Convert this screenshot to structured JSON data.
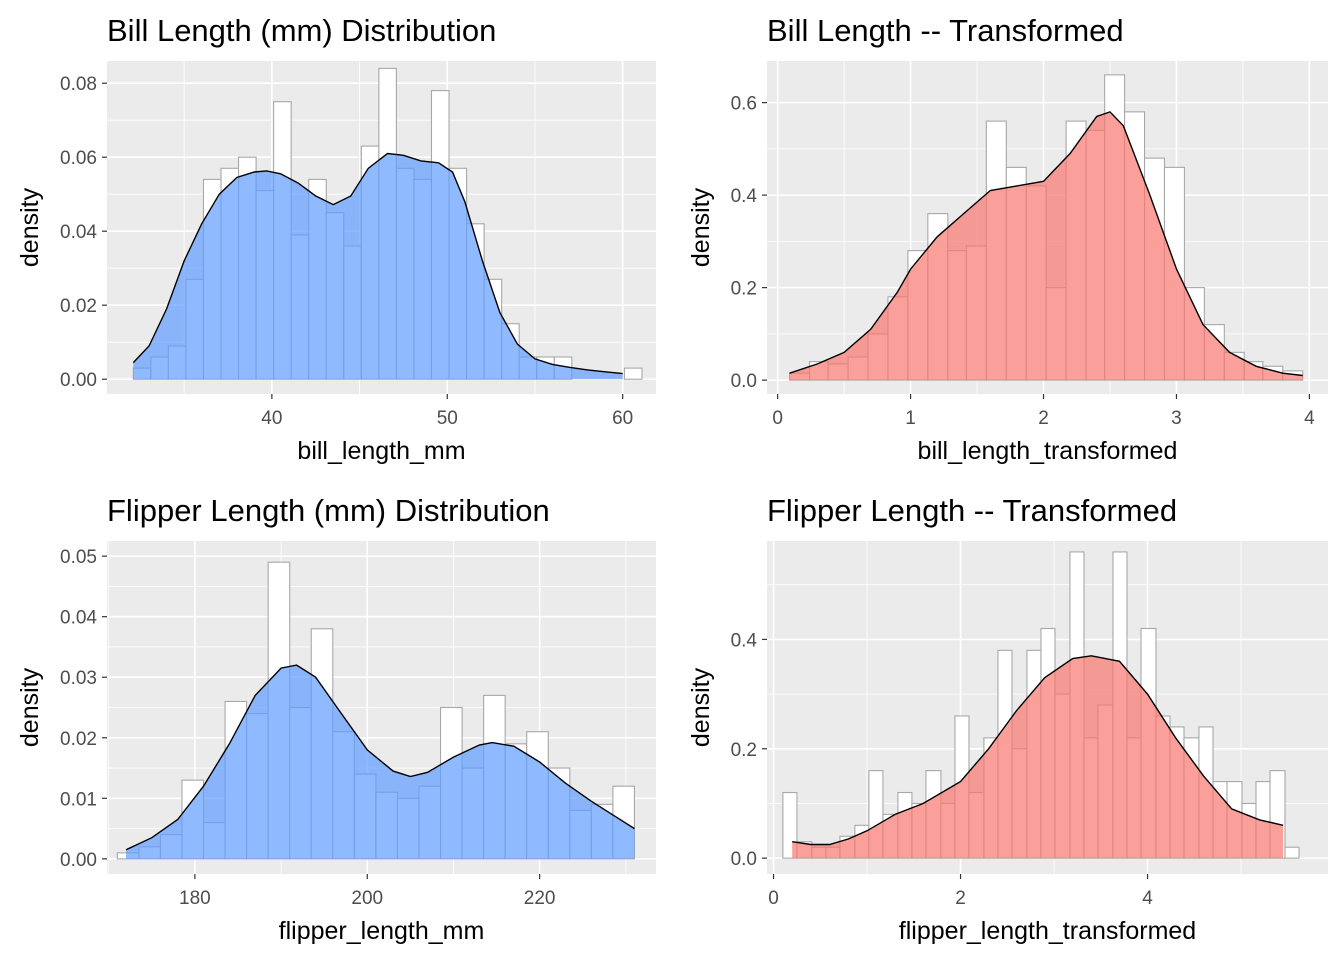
{
  "chart_data": [
    {
      "type": "bar",
      "title": "Bill Length (mm) Distribution",
      "xlabel": "bill_length_mm",
      "ylabel": "density",
      "xlim": [
        30.6,
        61.9
      ],
      "ylim": [
        -0.004,
        0.086
      ],
      "xticks": [
        40,
        50,
        60
      ],
      "xtick_labels": [
        "40",
        "50",
        "60"
      ],
      "yticks": [
        0.0,
        0.02,
        0.04,
        0.06,
        0.08
      ],
      "ytick_labels": [
        "0.00",
        "0.02",
        "0.04",
        "0.06",
        "0.08"
      ],
      "fill_color": "#619CFF",
      "histogram": {
        "bin_edges": [
          32.1,
          33.1,
          34.1,
          35.1,
          36.1,
          37.1,
          38.1,
          39.1,
          40.1,
          41.1,
          42.1,
          43.1,
          44.1,
          45.1,
          46.1,
          47.1,
          48.1,
          49.1,
          50.1,
          51.1,
          52.1,
          53.1,
          54.1,
          55.1,
          56.1,
          57.1,
          58.1,
          59.1,
          60.1,
          61.1
        ],
        "density": [
          0.003,
          0.006,
          0.009,
          0.027,
          0.054,
          0.057,
          0.06,
          0.051,
          0.075,
          0.039,
          0.054,
          0.045,
          0.036,
          0.063,
          0.084,
          0.057,
          0.054,
          0.078,
          0.057,
          0.042,
          0.027,
          0.015,
          0.006,
          0.006,
          0.006,
          0.0,
          0.0,
          0.0,
          0.003
        ]
      },
      "density_curve": {
        "x": [
          32.1,
          33.0,
          34.0,
          35.0,
          36.0,
          37.0,
          38.0,
          39.0,
          39.7,
          40.5,
          41.5,
          42.5,
          43.5,
          44.5,
          45.5,
          46.6,
          47.5,
          48.5,
          49.5,
          50.3,
          51.0,
          52.0,
          53.0,
          54.0,
          55.0,
          56.0,
          57.0,
          58.0,
          59.0,
          60.0
        ],
        "y": [
          0.0045,
          0.009,
          0.019,
          0.032,
          0.042,
          0.05,
          0.0545,
          0.056,
          0.0563,
          0.0555,
          0.053,
          0.0495,
          0.0472,
          0.0495,
          0.057,
          0.061,
          0.0605,
          0.059,
          0.0585,
          0.056,
          0.048,
          0.032,
          0.018,
          0.0095,
          0.0055,
          0.004,
          0.0032,
          0.0025,
          0.002,
          0.0015
        ]
      }
    },
    {
      "type": "bar",
      "title": "Bill Length -- Transformed",
      "xlabel": "bill_length_transformed",
      "ylabel": "density",
      "xlim": [
        -0.08,
        4.14
      ],
      "ylim": [
        -0.03,
        0.69
      ],
      "xticks": [
        0,
        1,
        2,
        3,
        4
      ],
      "xtick_labels": [
        "0",
        "1",
        "2",
        "3",
        "4"
      ],
      "yticks": [
        0.0,
        0.2,
        0.4,
        0.6
      ],
      "ytick_labels": [
        "0.0",
        "0.2",
        "0.4",
        "0.6"
      ],
      "fill_color": "#F8766D",
      "histogram": {
        "bin_edges": [
          0.09,
          0.24,
          0.38,
          0.53,
          0.68,
          0.83,
          0.98,
          1.13,
          1.28,
          1.42,
          1.57,
          1.72,
          1.87,
          2.02,
          2.17,
          2.32,
          2.46,
          2.61,
          2.76,
          2.91,
          3.06,
          3.21,
          3.36,
          3.51,
          3.65,
          3.8,
          3.95
        ],
        "density": [
          0.015,
          0.04,
          0.035,
          0.05,
          0.1,
          0.18,
          0.28,
          0.36,
          0.28,
          0.29,
          0.56,
          0.46,
          0.42,
          0.2,
          0.56,
          0.54,
          0.66,
          0.58,
          0.48,
          0.46,
          0.2,
          0.12,
          0.06,
          0.04,
          0.03,
          0.02
        ]
      },
      "density_curve": {
        "x": [
          0.09,
          0.3,
          0.5,
          0.7,
          0.9,
          1.0,
          1.2,
          1.4,
          1.6,
          1.8,
          2.0,
          2.2,
          2.4,
          2.5,
          2.6,
          2.8,
          3.0,
          3.2,
          3.4,
          3.6,
          3.8,
          3.95
        ],
        "y": [
          0.015,
          0.035,
          0.06,
          0.11,
          0.19,
          0.24,
          0.31,
          0.36,
          0.41,
          0.42,
          0.43,
          0.49,
          0.57,
          0.58,
          0.55,
          0.4,
          0.24,
          0.12,
          0.06,
          0.03,
          0.015,
          0.01
        ]
      }
    },
    {
      "type": "bar",
      "title": "Flipper Length (mm) Distribution",
      "xlabel": "flipper_length_mm",
      "ylabel": "density",
      "xlim": [
        169.8,
        233.5
      ],
      "ylim": [
        -0.0025,
        0.0525
      ],
      "xticks": [
        180,
        200,
        220
      ],
      "xtick_labels": [
        "180",
        "200",
        "220"
      ],
      "yticks": [
        0.0,
        0.01,
        0.02,
        0.03,
        0.04,
        0.05
      ],
      "ytick_labels": [
        "0.00",
        "0.01",
        "0.02",
        "0.03",
        "0.04",
        "0.05"
      ],
      "fill_color": "#619CFF",
      "histogram": {
        "bin_edges": [
          171.0,
          173.5,
          176.0,
          178.5,
          181.0,
          183.5,
          186.0,
          188.5,
          191.0,
          193.5,
          196.0,
          198.5,
          201.0,
          203.5,
          206.0,
          208.5,
          211.0,
          213.5,
          216.0,
          218.5,
          221.0,
          223.5,
          226.0,
          228.5,
          231.0
        ],
        "density": [
          0.001,
          0.002,
          0.004,
          0.013,
          0.006,
          0.026,
          0.024,
          0.049,
          0.025,
          0.038,
          0.021,
          0.014,
          0.011,
          0.01,
          0.012,
          0.025,
          0.015,
          0.027,
          0.019,
          0.021,
          0.015,
          0.008,
          0.009,
          0.012
        ]
      },
      "density_curve": {
        "x": [
          172.0,
          175.0,
          178.0,
          181.0,
          184.0,
          187.0,
          190.0,
          191.8,
          194.0,
          197.0,
          200.0,
          203.0,
          205.0,
          207.0,
          210.0,
          213.0,
          214.5,
          217.0,
          220.0,
          223.0,
          226.0,
          229.0,
          231.0
        ],
        "y": [
          0.0015,
          0.0035,
          0.0065,
          0.012,
          0.019,
          0.027,
          0.0315,
          0.032,
          0.03,
          0.024,
          0.018,
          0.0145,
          0.0136,
          0.0143,
          0.0168,
          0.0188,
          0.0192,
          0.0186,
          0.016,
          0.0125,
          0.0095,
          0.0068,
          0.005
        ]
      }
    },
    {
      "type": "bar",
      "title": "Flipper Length -- Transformed",
      "xlabel": "flipper_length_transformed",
      "ylabel": "density",
      "xlim": [
        -0.07,
        5.93
      ],
      "ylim": [
        -0.029,
        0.58
      ],
      "xticks": [
        0,
        2,
        4
      ],
      "xtick_labels": [
        "0",
        "2",
        "4"
      ],
      "yticks": [
        0.0,
        0.2,
        0.4
      ],
      "ytick_labels": [
        "0.0",
        "0.2",
        "0.4"
      ],
      "fill_color": "#F8766D",
      "histogram": {
        "bin_edges": [
          0.1,
          0.25,
          0.41,
          0.56,
          0.71,
          0.87,
          1.02,
          1.17,
          1.33,
          1.48,
          1.63,
          1.79,
          1.94,
          2.09,
          2.25,
          2.4,
          2.55,
          2.71,
          2.86,
          3.01,
          3.17,
          3.32,
          3.47,
          3.63,
          3.78,
          3.93,
          4.09,
          4.24,
          4.39,
          4.55,
          4.7,
          4.85,
          5.01,
          5.16,
          5.31,
          5.47,
          5.62
        ],
        "density": [
          0.12,
          0.03,
          0.02,
          0.02,
          0.04,
          0.06,
          0.16,
          0.08,
          0.12,
          0.1,
          0.16,
          0.1,
          0.26,
          0.12,
          0.22,
          0.38,
          0.2,
          0.38,
          0.42,
          0.3,
          0.56,
          0.22,
          0.28,
          0.56,
          0.22,
          0.42,
          0.26,
          0.24,
          0.22,
          0.24,
          0.14,
          0.14,
          0.1,
          0.14,
          0.16,
          0.02
        ]
      },
      "density_curve": {
        "x": [
          0.2,
          0.4,
          0.6,
          0.8,
          1.0,
          1.3,
          1.6,
          2.0,
          2.3,
          2.6,
          2.9,
          3.2,
          3.4,
          3.7,
          4.0,
          4.3,
          4.6,
          4.9,
          5.2,
          5.45
        ],
        "y": [
          0.03,
          0.025,
          0.025,
          0.035,
          0.05,
          0.08,
          0.1,
          0.14,
          0.2,
          0.27,
          0.33,
          0.365,
          0.37,
          0.36,
          0.3,
          0.22,
          0.15,
          0.09,
          0.07,
          0.06
        ]
      }
    }
  ]
}
